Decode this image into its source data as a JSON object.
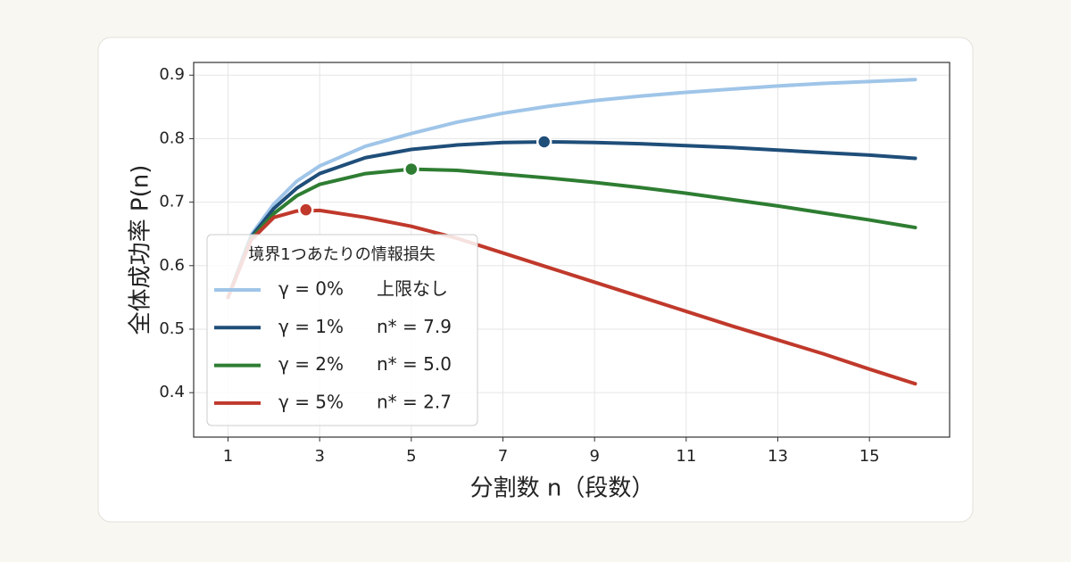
{
  "chart_data": {
    "type": "line",
    "x_label": "分割数 n（段数）",
    "y_label": "全体成功率 P(n)",
    "legend_title": "境界1つあたりの情報損失",
    "legend_position": "lower left",
    "grid": true,
    "x": [
      1,
      1.5,
      2,
      2.5,
      3,
      4,
      5,
      6,
      7,
      8,
      9,
      10,
      11,
      12,
      13,
      14,
      15,
      16
    ],
    "xlim": [
      0.25,
      16.75
    ],
    "xticks": [
      1,
      3,
      5,
      7,
      9,
      11,
      13,
      15
    ],
    "ylim": [
      0.33,
      0.92
    ],
    "yticks": [
      0.4,
      0.5,
      0.6,
      0.7,
      0.8,
      0.9
    ],
    "series": [
      {
        "name": "γ = 0%",
        "note": "上限なし",
        "color": "#9fc5e8",
        "values": [
          0.55,
          0.648,
          0.697,
          0.733,
          0.757,
          0.788,
          0.808,
          0.826,
          0.84,
          0.851,
          0.86,
          0.867,
          0.873,
          0.878,
          0.883,
          0.887,
          0.89,
          0.893
        ]
      },
      {
        "name": "γ = 1%",
        "note": "n* = 7.9",
        "color": "#1f4e79",
        "values": [
          0.55,
          0.645,
          0.69,
          0.722,
          0.745,
          0.77,
          0.783,
          0.79,
          0.794,
          0.795,
          0.794,
          0.792,
          0.789,
          0.786,
          0.782,
          0.778,
          0.774,
          0.769
        ],
        "optimum": {
          "x": 7.9,
          "y": 0.795
        }
      },
      {
        "name": "γ = 2%",
        "note": "n* = 5.0",
        "color": "#2e7d32",
        "values": [
          0.55,
          0.642,
          0.682,
          0.71,
          0.728,
          0.745,
          0.752,
          0.75,
          0.744,
          0.738,
          0.731,
          0.723,
          0.714,
          0.704,
          0.694,
          0.683,
          0.672,
          0.66
        ],
        "optimum": {
          "x": 5,
          "y": 0.752
        }
      },
      {
        "name": "γ = 5%",
        "note": "n* = 2.7",
        "color": "#c0392b",
        "values": [
          0.55,
          0.64,
          0.676,
          0.686,
          0.687,
          0.676,
          0.662,
          0.643,
          0.62,
          0.597,
          0.574,
          0.551,
          0.528,
          0.505,
          0.483,
          0.461,
          0.437,
          0.414
        ],
        "optimum": {
          "x": 2.7,
          "y": 0.688
        }
      }
    ]
  }
}
